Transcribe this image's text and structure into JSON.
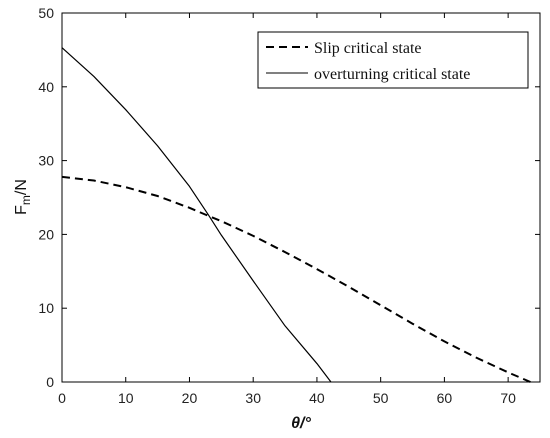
{
  "chart_data": {
    "type": "line",
    "xlabel": "θ/°",
    "ylabel": {
      "main": "F",
      "sub": "m",
      "suffix": "/N"
    },
    "xlim": [
      0,
      75
    ],
    "ylim": [
      0,
      50
    ],
    "xticks": [
      0,
      10,
      20,
      30,
      40,
      50,
      60,
      70
    ],
    "yticks": [
      0,
      10,
      20,
      30,
      40,
      50
    ],
    "grid": false,
    "legend_position": "top-right",
    "series": [
      {
        "name": "Slip critical state",
        "style": "dashed",
        "color": "#000000",
        "x": [
          0,
          5,
          10,
          15,
          20,
          23,
          25,
          30,
          35,
          40,
          45,
          50,
          55,
          60,
          65,
          70,
          73.5
        ],
        "y": [
          27.8,
          27.3,
          26.4,
          25.2,
          23.6,
          22.5,
          21.8,
          19.8,
          17.6,
          15.3,
          12.9,
          10.4,
          7.9,
          5.5,
          3.3,
          1.3,
          0
        ]
      },
      {
        "name": "overturning critical state",
        "style": "solid",
        "color": "#000000",
        "x": [
          0,
          5,
          10,
          15,
          20,
          23,
          25,
          30,
          35,
          40,
          42.2
        ],
        "y": [
          45.3,
          41.4,
          36.9,
          32.0,
          26.5,
          22.6,
          19.9,
          13.7,
          7.6,
          2.5,
          0
        ]
      }
    ]
  }
}
